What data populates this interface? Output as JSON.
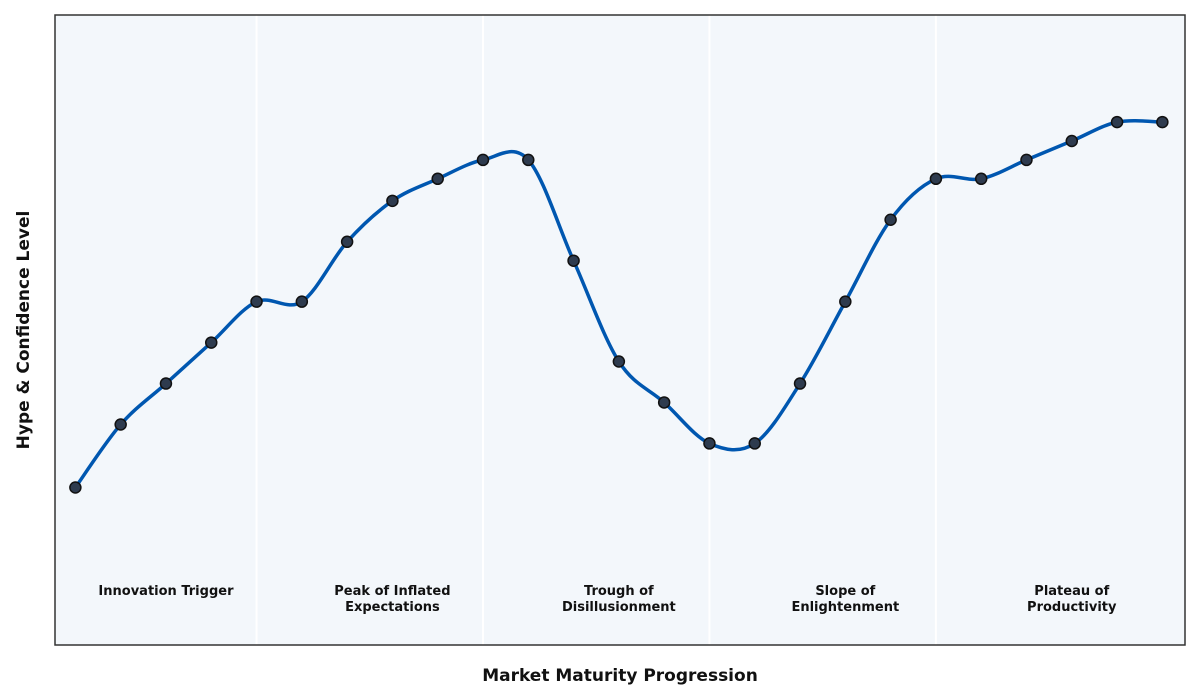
{
  "chart_data": {
    "type": "line",
    "xlabel": "Market Maturity Progression",
    "ylabel": "Hype & Confidence Level",
    "ylim": [
      0,
      100
    ],
    "grid": false,
    "x_ticks_visible": false,
    "y_ticks_visible": false,
    "colors": {
      "line": "#0057b0",
      "marker_fill": "#2e3b4e",
      "marker_edge": "#111111",
      "panel_background": "#f3f7fb",
      "phase_divider": "#ffffff",
      "frame": "#333333"
    },
    "phases": [
      {
        "label": [
          "Innovation Trigger"
        ]
      },
      {
        "label": [
          "Peak of Inflated",
          "Expectations"
        ]
      },
      {
        "label": [
          "Trough of",
          "Disillusionment"
        ]
      },
      {
        "label": [
          "Slope of",
          "Enlightenment"
        ]
      },
      {
        "label": [
          "Plateau of",
          "Productivity"
        ]
      }
    ],
    "series": [
      {
        "x": [
          1,
          2,
          3,
          4,
          5,
          6,
          7,
          8,
          9,
          10,
          11,
          12,
          13,
          14,
          15,
          16,
          17,
          18,
          19,
          20,
          21,
          22,
          23,
          24,
          25
        ],
        "y": [
          25,
          35,
          41.5,
          48,
          54.5,
          54.5,
          64,
          70.5,
          74,
          77,
          77,
          61,
          45,
          38.5,
          32,
          32,
          41.5,
          54.5,
          67.5,
          74,
          74,
          77,
          80,
          83,
          83
        ]
      }
    ]
  }
}
